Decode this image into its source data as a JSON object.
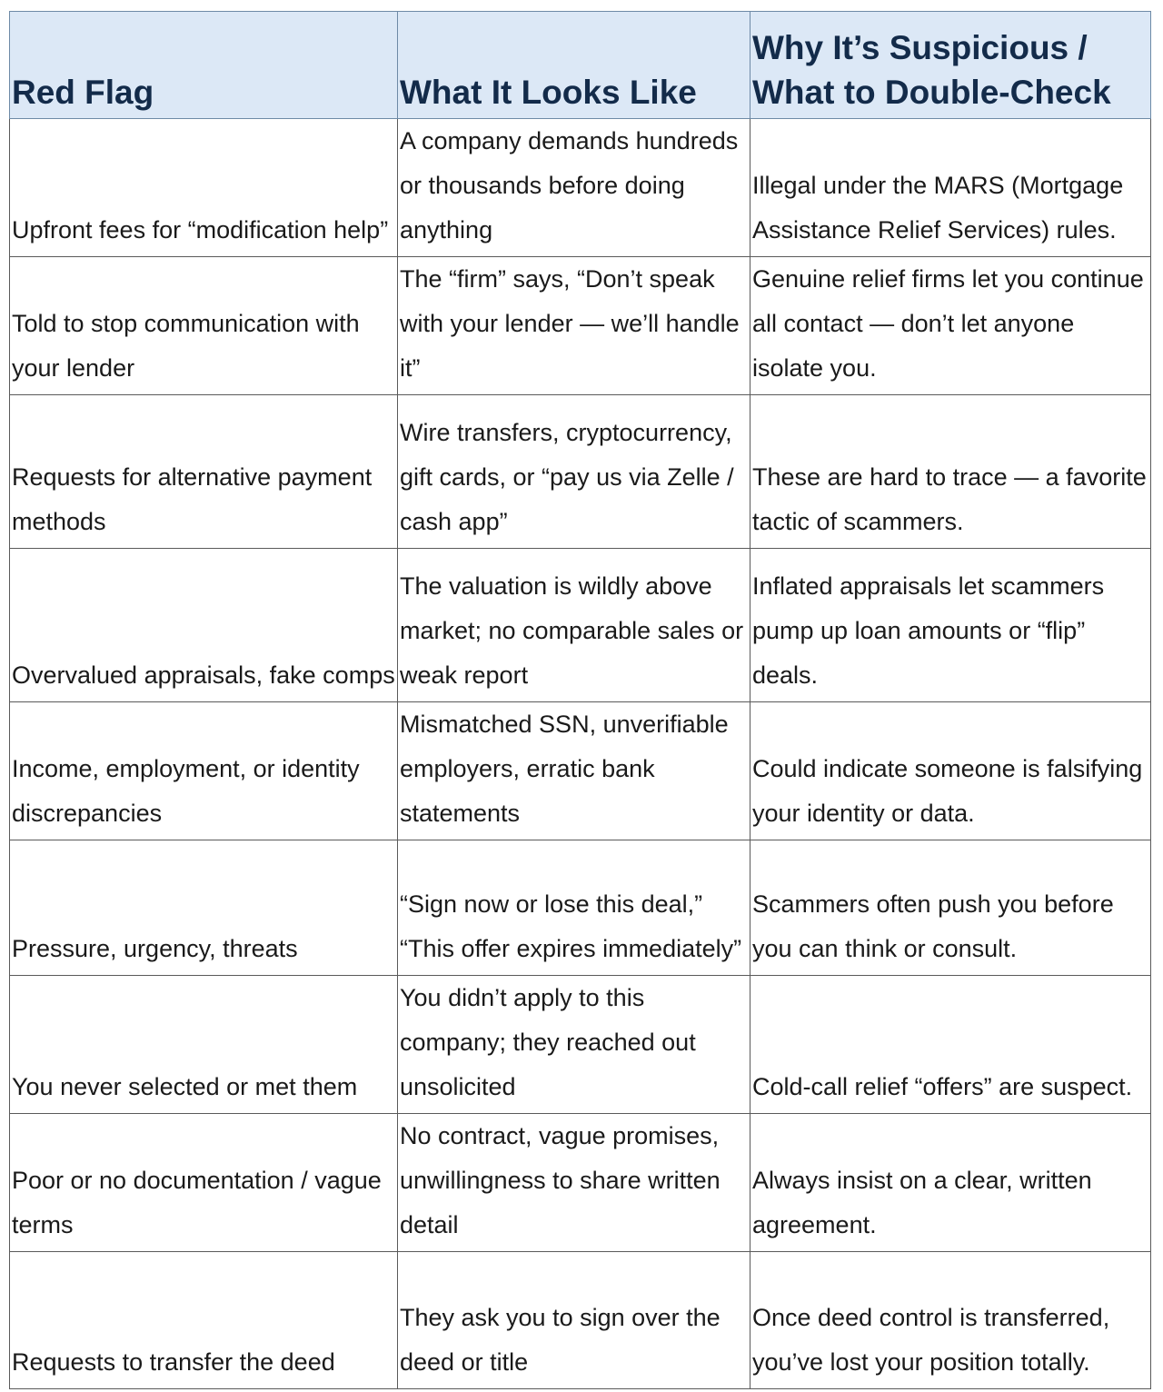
{
  "table": {
    "headers": [
      "Red Flag",
      "What It Looks Like",
      "Why It’s Suspicious / What to Double-Check"
    ],
    "rows": [
      [
        "Upfront fees for “modification help”",
        "A company demands hundreds or thousands before doing anything",
        "Illegal under the MARS (Mortgage Assistance Relief Services) rules."
      ],
      [
        "Told to stop communication with your lender",
        "The “firm” says, “Don’t speak with your lender — we’ll handle it”",
        "Genuine relief firms let you continue all contact — don’t let anyone isolate you."
      ],
      [
        "Requests for alternative payment methods",
        "Wire transfers, cryptocurrency, gift cards, or “pay us via Zelle / cash app”",
        "These are hard to trace — a favorite tactic of scammers."
      ],
      [
        "Overvalued appraisals, fake comps",
        "The valuation is wildly above market; no comparable sales or weak report",
        "Inflated appraisals let scammers pump up loan amounts or “flip” deals."
      ],
      [
        "Income, employment, or identity discrepancies",
        "Mismatched SSN, unverifiable employers, erratic bank statements",
        "Could indicate someone is falsifying your identity or data."
      ],
      [
        "Pressure, urgency, threats",
        "“Sign now or lose this deal,” “This offer expires immediately”",
        "Scammers often push you before you can think or consult."
      ],
      [
        "You never selected or met them",
        "You didn’t apply to this company; they reached out unsolicited",
        "Cold-call relief “offers” are suspect."
      ],
      [
        "Poor or no documentation / vague terms",
        "No contract, vague promises, unwillingness to share written detail",
        "Always insist on a clear, written agreement."
      ],
      [
        "Requests to transfer the deed",
        "They ask you to sign over the deed or title",
        "Once deed control is transferred, you’ve lost your position totally."
      ]
    ]
  },
  "colors": {
    "header_bg": "#dce8f6",
    "header_text": "#132b4a",
    "body_text": "#1a1a1a"
  }
}
